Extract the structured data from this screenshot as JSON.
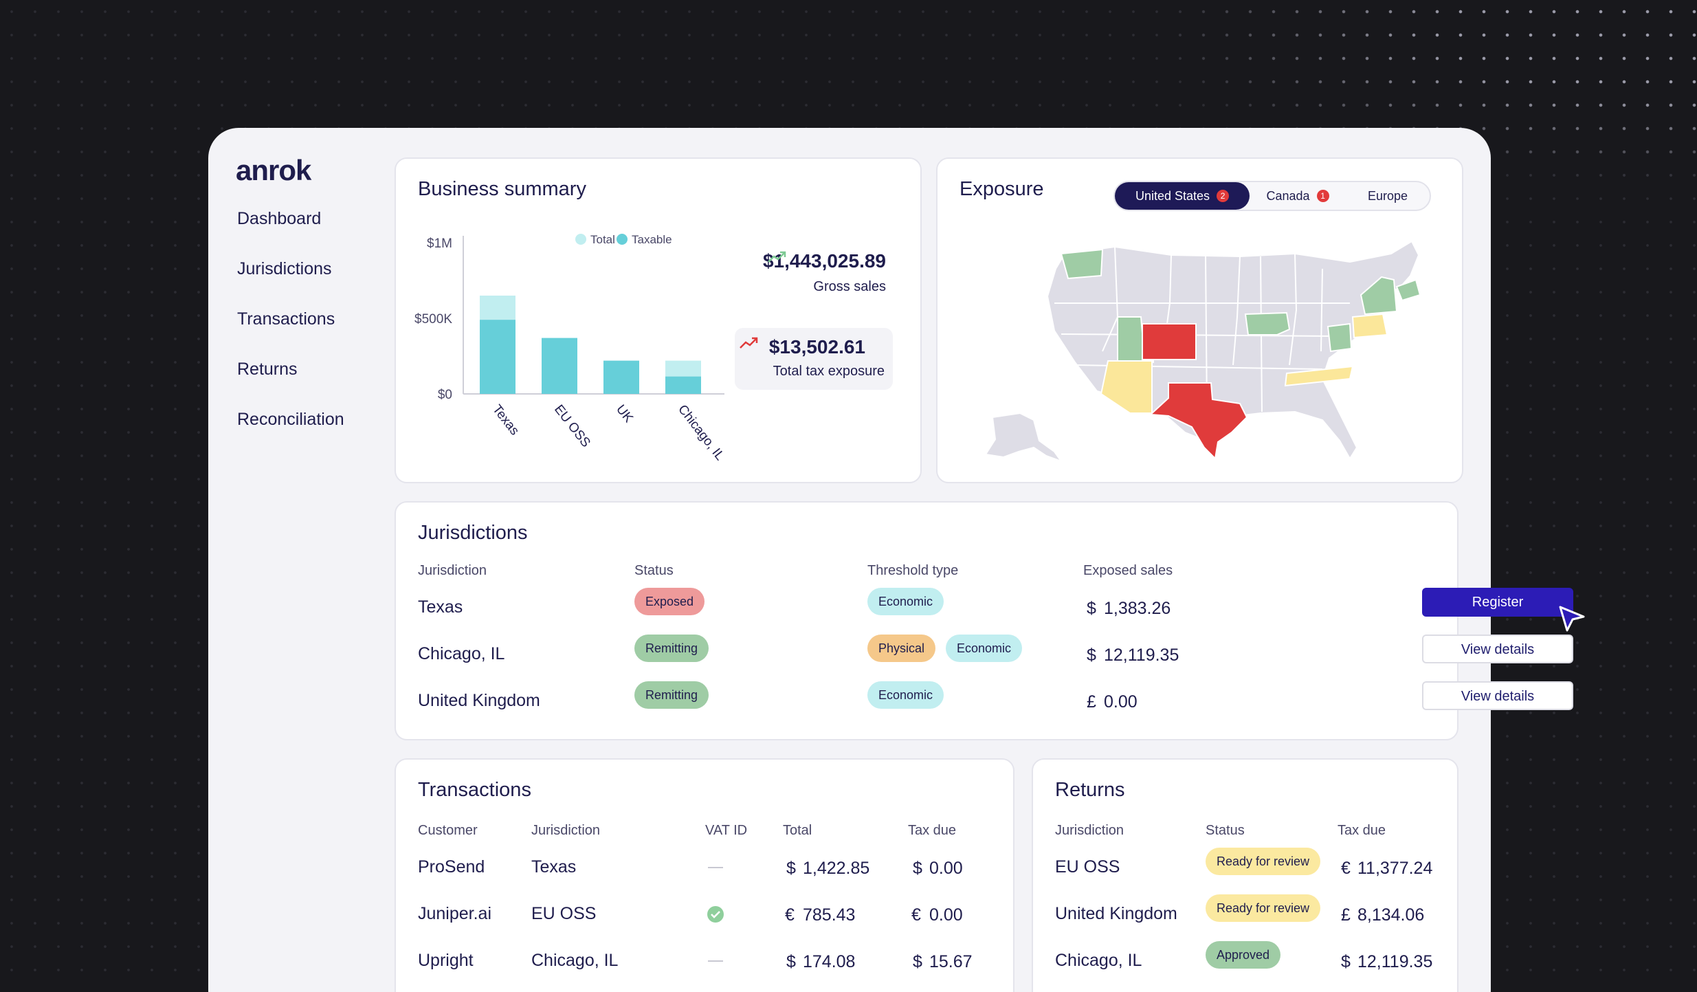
{
  "brand": "anrok",
  "nav": [
    {
      "label": "Dashboard"
    },
    {
      "label": "Jurisdictions"
    },
    {
      "label": "Transactions"
    },
    {
      "label": "Returns"
    },
    {
      "label": "Reconciliation"
    }
  ],
  "summary": {
    "title": "Business summary",
    "gross_sales_value": "$1,443,025.89",
    "gross_sales_label": "Gross sales",
    "tax_exposure_value": "$13,502.61",
    "tax_exposure_label": "Total tax exposure"
  },
  "chart_data": {
    "type": "bar",
    "categories": [
      "Texas",
      "EU OSS",
      "UK",
      "Chicago, IL"
    ],
    "series": [
      {
        "name": "Total",
        "values": [
          650000,
          0,
          0,
          220000
        ],
        "color": "#c1eef0"
      },
      {
        "name": "Taxable",
        "values": [
          490000,
          370000,
          220000,
          115000
        ],
        "color": "#66cfd9"
      }
    ],
    "y_ticks": [
      "$1M",
      "$500K",
      "$0"
    ],
    "ylim": [
      0,
      1000000
    ],
    "legend": "top-center"
  },
  "exposure": {
    "title": "Exposure",
    "tabs": [
      {
        "label": "United States",
        "badge": "2",
        "active": true
      },
      {
        "label": "Canada",
        "badge": "1",
        "active": false
      },
      {
        "label": "Europe",
        "badge": "",
        "active": false
      }
    ],
    "colors": {
      "exposed": "#e03b3b",
      "remitting": "#9fcca5",
      "approaching": "#fbe79a",
      "neutral": "#dedde6"
    }
  },
  "jurisdictions": {
    "title": "Jurisdictions",
    "headers": [
      "Jurisdiction",
      "Status",
      "Threshold type",
      "Exposed sales"
    ],
    "rows": [
      {
        "name": "Texas",
        "status": "Exposed",
        "thresholds": [
          "Economic"
        ],
        "currency": "$",
        "amount": "1,383.26",
        "action": "Register"
      },
      {
        "name": "Chicago, IL",
        "status": "Remitting",
        "thresholds": [
          "Physical",
          "Economic"
        ],
        "currency": "$",
        "amount": "12,119.35",
        "action": "View details"
      },
      {
        "name": "United Kingdom",
        "status": "Remitting",
        "thresholds": [
          "Economic"
        ],
        "currency": "£",
        "amount": "0.00",
        "action": "View details"
      }
    ]
  },
  "transactions": {
    "title": "Transactions",
    "headers": [
      "Customer",
      "Jurisdiction",
      "VAT ID",
      "Total",
      "Tax due"
    ],
    "rows": [
      {
        "customer": "ProSend",
        "jurisdiction": "Texas",
        "vat": "none",
        "total_cur": "$",
        "total": "1,422.85",
        "tax_cur": "$",
        "tax": "0.00"
      },
      {
        "customer": "Juniper.ai",
        "jurisdiction": "EU OSS",
        "vat": "valid",
        "total_cur": "€",
        "total": "785.43",
        "tax_cur": "€",
        "tax": "0.00"
      },
      {
        "customer": "Upright",
        "jurisdiction": "Chicago, IL",
        "vat": "none",
        "total_cur": "$",
        "total": "174.08",
        "tax_cur": "$",
        "tax": "15.67"
      }
    ]
  },
  "returns": {
    "title": "Returns",
    "headers": [
      "Jurisdiction",
      "Status",
      "Tax due"
    ],
    "rows": [
      {
        "jurisdiction": "EU OSS",
        "status": "Ready for review",
        "cur": "€",
        "amount": "11,377.24"
      },
      {
        "jurisdiction": "United Kingdom",
        "status": "Ready for review",
        "cur": "£",
        "amount": "8,134.06"
      },
      {
        "jurisdiction": "Chicago, IL",
        "status": "Approved",
        "cur": "$",
        "amount": "12,119.35"
      }
    ]
  }
}
